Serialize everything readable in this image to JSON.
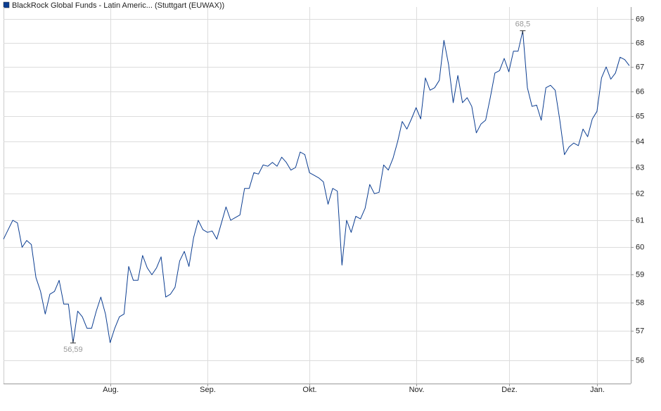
{
  "chart_data": {
    "type": "line",
    "series": [
      {
        "name": "BlackRock Global Funds - Latin Americ... (Stuttgart (EUWAX))",
        "color": "#0b3d91",
        "values": [
          60.3,
          60.65,
          61.0,
          60.9,
          60.0,
          60.25,
          60.1,
          58.9,
          58.4,
          57.6,
          58.3,
          58.4,
          58.8,
          57.95,
          57.95,
          56.59,
          57.7,
          57.5,
          57.1,
          57.1,
          57.7,
          58.2,
          57.6,
          56.6,
          57.1,
          57.5,
          57.6,
          59.3,
          58.8,
          58.8,
          59.7,
          59.25,
          59.0,
          59.25,
          59.65,
          58.2,
          58.3,
          58.55,
          59.5,
          59.85,
          59.3,
          60.35,
          61.0,
          60.65,
          60.55,
          60.6,
          60.3,
          60.9,
          61.5,
          61.0,
          61.1,
          61.2,
          62.2,
          62.2,
          62.8,
          62.75,
          63.1,
          63.05,
          63.2,
          63.05,
          63.4,
          63.2,
          62.9,
          63.0,
          63.6,
          63.5,
          62.8,
          62.7,
          62.6,
          62.45,
          61.6,
          62.2,
          62.1,
          59.35,
          61.0,
          60.55,
          61.15,
          61.05,
          61.45,
          62.35,
          62.0,
          62.05,
          63.1,
          62.9,
          63.35,
          64.0,
          64.8,
          64.5,
          64.9,
          65.35,
          64.9,
          66.55,
          66.05,
          66.15,
          66.45,
          68.1,
          67.1,
          65.55,
          66.65,
          65.55,
          65.75,
          65.4,
          64.35,
          64.7,
          64.85,
          65.75,
          66.75,
          66.85,
          67.35,
          66.8,
          67.65,
          67.65,
          68.5,
          66.15,
          65.4,
          65.45,
          64.85,
          66.15,
          66.25,
          66.05,
          64.85,
          63.5,
          63.8,
          63.95,
          63.85,
          64.5,
          64.2,
          64.9,
          65.2,
          66.55,
          67.0,
          66.5,
          66.75,
          67.4,
          67.3,
          67.05
        ],
        "value_labels": [
          null,
          null,
          null,
          null,
          null,
          null,
          null,
          null,
          null,
          null,
          null,
          null,
          null,
          null,
          null,
          "56,59",
          null,
          null,
          null,
          null,
          null,
          null,
          null,
          null,
          null,
          null,
          null,
          null,
          null,
          null,
          null,
          null,
          null,
          null,
          null,
          null,
          null,
          null,
          null,
          null,
          null,
          null,
          null,
          null,
          null,
          null,
          null,
          null,
          null,
          null,
          null,
          null,
          null,
          null,
          null,
          null,
          null,
          null,
          null,
          null,
          null,
          null,
          null,
          null,
          null,
          null,
          null,
          null,
          null,
          null,
          null,
          null,
          null,
          null,
          null,
          null,
          null,
          null,
          null,
          null,
          null,
          null,
          null,
          null,
          null,
          null,
          null,
          null,
          null,
          null,
          null,
          null,
          null,
          null,
          null,
          null,
          null,
          null,
          null,
          null,
          null,
          null,
          null,
          null,
          null,
          null,
          null,
          null,
          null,
          null,
          null,
          null,
          "68,5",
          null,
          null,
          null,
          null,
          null,
          null,
          null,
          null,
          null,
          null,
          null,
          null,
          null,
          null,
          null,
          null,
          null,
          null,
          null,
          null,
          null,
          null,
          null
        ]
      }
    ],
    "categories": [
      null,
      null,
      null,
      null,
      null,
      null,
      null,
      null,
      null,
      null,
      null,
      null,
      null,
      null,
      null,
      null,
      null,
      null,
      null,
      null,
      null,
      null,
      null,
      "Aug.",
      null,
      null,
      null,
      null,
      null,
      null,
      null,
      null,
      null,
      null,
      null,
      null,
      null,
      null,
      null,
      null,
      null,
      null,
      null,
      null,
      "Sep.",
      null,
      null,
      null,
      null,
      null,
      null,
      null,
      null,
      null,
      null,
      null,
      null,
      null,
      null,
      null,
      null,
      null,
      null,
      null,
      null,
      null,
      "Okt.",
      null,
      null,
      null,
      null,
      null,
      null,
      null,
      null,
      null,
      null,
      null,
      null,
      null,
      null,
      null,
      null,
      null,
      null,
      null,
      null,
      null,
      null,
      "Nov.",
      null,
      null,
      null,
      null,
      null,
      null,
      null,
      null,
      null,
      null,
      null,
      null,
      null,
      null,
      null,
      null,
      null,
      null,
      null,
      "Dez.",
      null,
      null,
      null,
      null,
      null,
      null,
      null,
      null,
      null,
      null,
      null,
      null,
      null,
      null,
      null,
      null,
      null,
      null,
      "Jan.",
      null,
      null,
      null,
      null,
      null,
      null,
      null
    ],
    "ylim": [
      55.2,
      69.5
    ],
    "yticks": [
      56,
      57,
      58,
      59,
      60,
      61,
      62,
      63,
      64,
      65,
      66,
      67,
      68,
      69
    ],
    "log_scale": true,
    "grid": true
  }
}
